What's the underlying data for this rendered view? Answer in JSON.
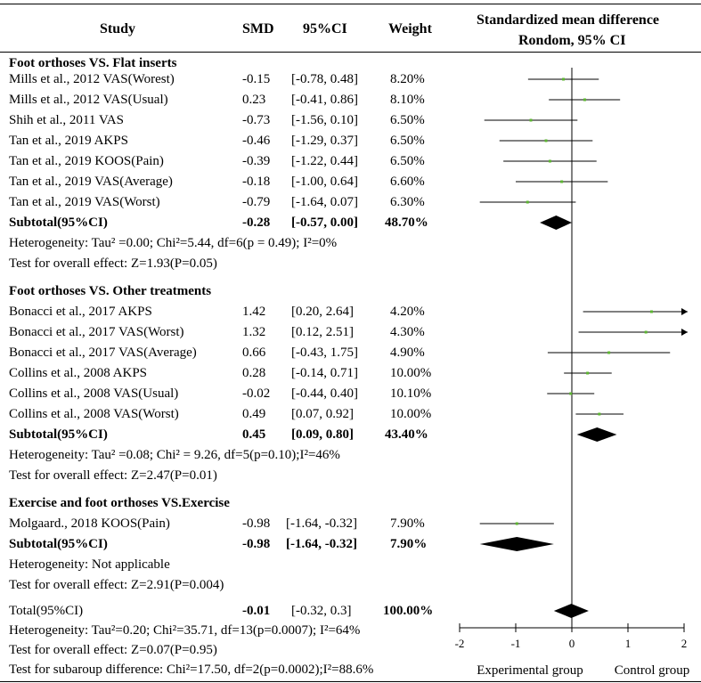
{
  "header": {
    "study": "Study",
    "smd": "SMD",
    "ci": "95%CI",
    "weight": "Weight",
    "plot_title_1": "Standardized mean difference",
    "plot_title_2": "Rondom, 95% CI"
  },
  "groups": [
    {
      "title": "Foot orthoses VS. Flat inserts",
      "rows": [
        {
          "study": "Mills et al., 2012 VAS(Worest)",
          "smd": "-0.15",
          "ci": "[-0.78, 0.48]",
          "weight": "8.20%"
        },
        {
          "study": "Mills et al., 2012 VAS(Usual)",
          "smd": "0.23",
          "ci": "[-0.41, 0.86]",
          "weight": "8.10%"
        },
        {
          "study": "Shih et al., 2011 VAS",
          "smd": "-0.73",
          "ci": "[-1.56, 0.10]",
          "weight": "6.50%"
        },
        {
          "study": "Tan et al., 2019 AKPS",
          "smd": "-0.46",
          "ci": "[-1.29, 0.37]",
          "weight": "6.50%"
        },
        {
          "study": "Tan et al., 2019 KOOS(Pain)",
          "smd": "-0.39",
          "ci": "[-1.22, 0.44]",
          "weight": "6.50%"
        },
        {
          "study": "Tan et al., 2019 VAS(Average)",
          "smd": "-0.18",
          "ci": "[-1.00, 0.64]",
          "weight": "6.60%"
        },
        {
          "study": "Tan et al., 2019 VAS(Worst)",
          "smd": "-0.79",
          "ci": "[-1.64, 0.07]",
          "weight": "6.30%"
        }
      ],
      "subtotal": {
        "label": "Subtotal(95%CI)",
        "smd": "-0.28",
        "ci": "[-0.57, 0.00]",
        "weight": "48.70%"
      },
      "heterogeneity": "Heterogeneity: Tau² =0.00; Chi²=5.44, df=6(p = 0.49); I²=0%",
      "overall": "Test for overall effect: Z=1.93(P=0.05)"
    },
    {
      "title": "Foot orthoses VS. Other treatments",
      "rows": [
        {
          "study": "Bonacci et al., 2017 AKPS",
          "smd": "1.42",
          "ci": "[0.20, 2.64]",
          "weight": "4.20%"
        },
        {
          "study": "Bonacci et al., 2017 VAS(Worst)",
          "smd": "1.32",
          "ci": "[0.12, 2.51]",
          "weight": "4.30%"
        },
        {
          "study": "Bonacci et al., 2017 VAS(Average)",
          "smd": "0.66",
          "ci": "[-0.43, 1.75]",
          "weight": "4.90%"
        },
        {
          "study": "Collins et al., 2008 AKPS",
          "smd": "0.28",
          "ci": "[-0.14, 0.71]",
          "weight": "10.00%"
        },
        {
          "study": "Collins et al., 2008 VAS(Usual)",
          "smd": "-0.02",
          "ci": "[-0.44, 0.40]",
          "weight": "10.10%"
        },
        {
          "study": "Collins et al., 2008 VAS(Worst)",
          "smd": "0.49",
          "ci": "[0.07, 0.92]",
          "weight": "10.00%"
        }
      ],
      "subtotal": {
        "label": "Subtotal(95%CI)",
        "smd": "0.45",
        "ci": "[0.09, 0.80]",
        "weight": "43.40%"
      },
      "heterogeneity": "Heterogeneity: Tau² =0.08; Chi² = 9.26, df=5(p=0.10);I²=46%",
      "overall": "Test for overall effect: Z=2.47(P=0.01)"
    },
    {
      "title": "Exercise and foot orthoses VS.Exercise",
      "rows": [
        {
          "study": "Molgaard., 2018 KOOS(Pain)",
          "smd": "-0.98",
          "ci": "[-1.64, -0.32]",
          "weight": "7.90%"
        }
      ],
      "subtotal": {
        "label": "Subtotal(95%CI)",
        "smd": "-0.98",
        "ci": "[-1.64, -0.32]",
        "weight": "7.90%"
      },
      "heterogeneity": "Heterogeneity: Not applicable",
      "overall": "Test for overall effect: Z=2.91(P=0.004)"
    }
  ],
  "total": {
    "label": "Total(95%CI)",
    "smd": "-0.01",
    "ci": "[-0.32, 0.3]",
    "weight": "100.00%"
  },
  "total_heterogeneity": "Heterogeneity: Tau²=0.20; Chi²=35.71, df=13(p=0.0007); I²=64%",
  "total_overall": "Test for overall effect: Z=0.07(P=0.95)",
  "subgroup_difference": "Test for subaroup difference: Chi²=17.50, df=2(p=0.0002);I²=88.6%",
  "colors": {
    "point": "#5cb531",
    "line": "#000000",
    "diamond": "#000000"
  },
  "chart_data": {
    "type": "forest",
    "title": "Standardized mean difference",
    "subtitle": "Rondom, 95% CI",
    "xlim": [
      -2,
      2
    ],
    "xticks": [
      -2,
      -1,
      0,
      1,
      2
    ],
    "xtick_labels": [
      "-2",
      "-1",
      "0",
      "1",
      "2"
    ],
    "left_label": "Experimental group",
    "right_label": "Control group",
    "studies": [
      {
        "label": "Mills et al., 2012 VAS(Worest)",
        "est": -0.15,
        "lo": -0.78,
        "hi": 0.48
      },
      {
        "label": "Mills et al., 2012 VAS(Usual)",
        "est": 0.23,
        "lo": -0.41,
        "hi": 0.86
      },
      {
        "label": "Shih et al., 2011 VAS",
        "est": -0.73,
        "lo": -1.56,
        "hi": 0.1
      },
      {
        "label": "Tan et al., 2019 AKPS",
        "est": -0.46,
        "lo": -1.29,
        "hi": 0.37
      },
      {
        "label": "Tan et al., 2019 KOOS(Pain)",
        "est": -0.39,
        "lo": -1.22,
        "hi": 0.44
      },
      {
        "label": "Tan et al., 2019 VAS(Average)",
        "est": -0.18,
        "lo": -1.0,
        "hi": 0.64
      },
      {
        "label": "Tan et al., 2019 VAS(Worst)",
        "est": -0.79,
        "lo": -1.64,
        "hi": 0.07
      },
      {
        "label": "Bonacci et al., 2017 AKPS",
        "est": 1.42,
        "lo": 0.2,
        "hi": 2.64
      },
      {
        "label": "Bonacci et al., 2017 VAS(Worst)",
        "est": 1.32,
        "lo": 0.12,
        "hi": 2.51
      },
      {
        "label": "Bonacci et al., 2017 VAS(Average)",
        "est": 0.66,
        "lo": -0.43,
        "hi": 1.75
      },
      {
        "label": "Collins et al., 2008 AKPS",
        "est": 0.28,
        "lo": -0.14,
        "hi": 0.71
      },
      {
        "label": "Collins et al., 2008 VAS(Usual)",
        "est": -0.02,
        "lo": -0.44,
        "hi": 0.4
      },
      {
        "label": "Collins et al., 2008 VAS(Worst)",
        "est": 0.49,
        "lo": 0.07,
        "hi": 0.92
      },
      {
        "label": "Molgaard., 2018 KOOS(Pain)",
        "est": -0.98,
        "lo": -1.64,
        "hi": -0.32
      }
    ],
    "pooled": [
      {
        "label": "Subtotal Foot orthoses VS. Flat inserts",
        "est": -0.28,
        "lo": -0.57,
        "hi": 0.0
      },
      {
        "label": "Subtotal Foot orthoses VS. Other treatments",
        "est": 0.45,
        "lo": 0.09,
        "hi": 0.8
      },
      {
        "label": "Subtotal Exercise and foot orthoses VS.Exercise",
        "est": -0.98,
        "lo": -1.64,
        "hi": -0.32
      },
      {
        "label": "Total",
        "est": -0.01,
        "lo": -0.32,
        "hi": 0.3
      }
    ]
  }
}
